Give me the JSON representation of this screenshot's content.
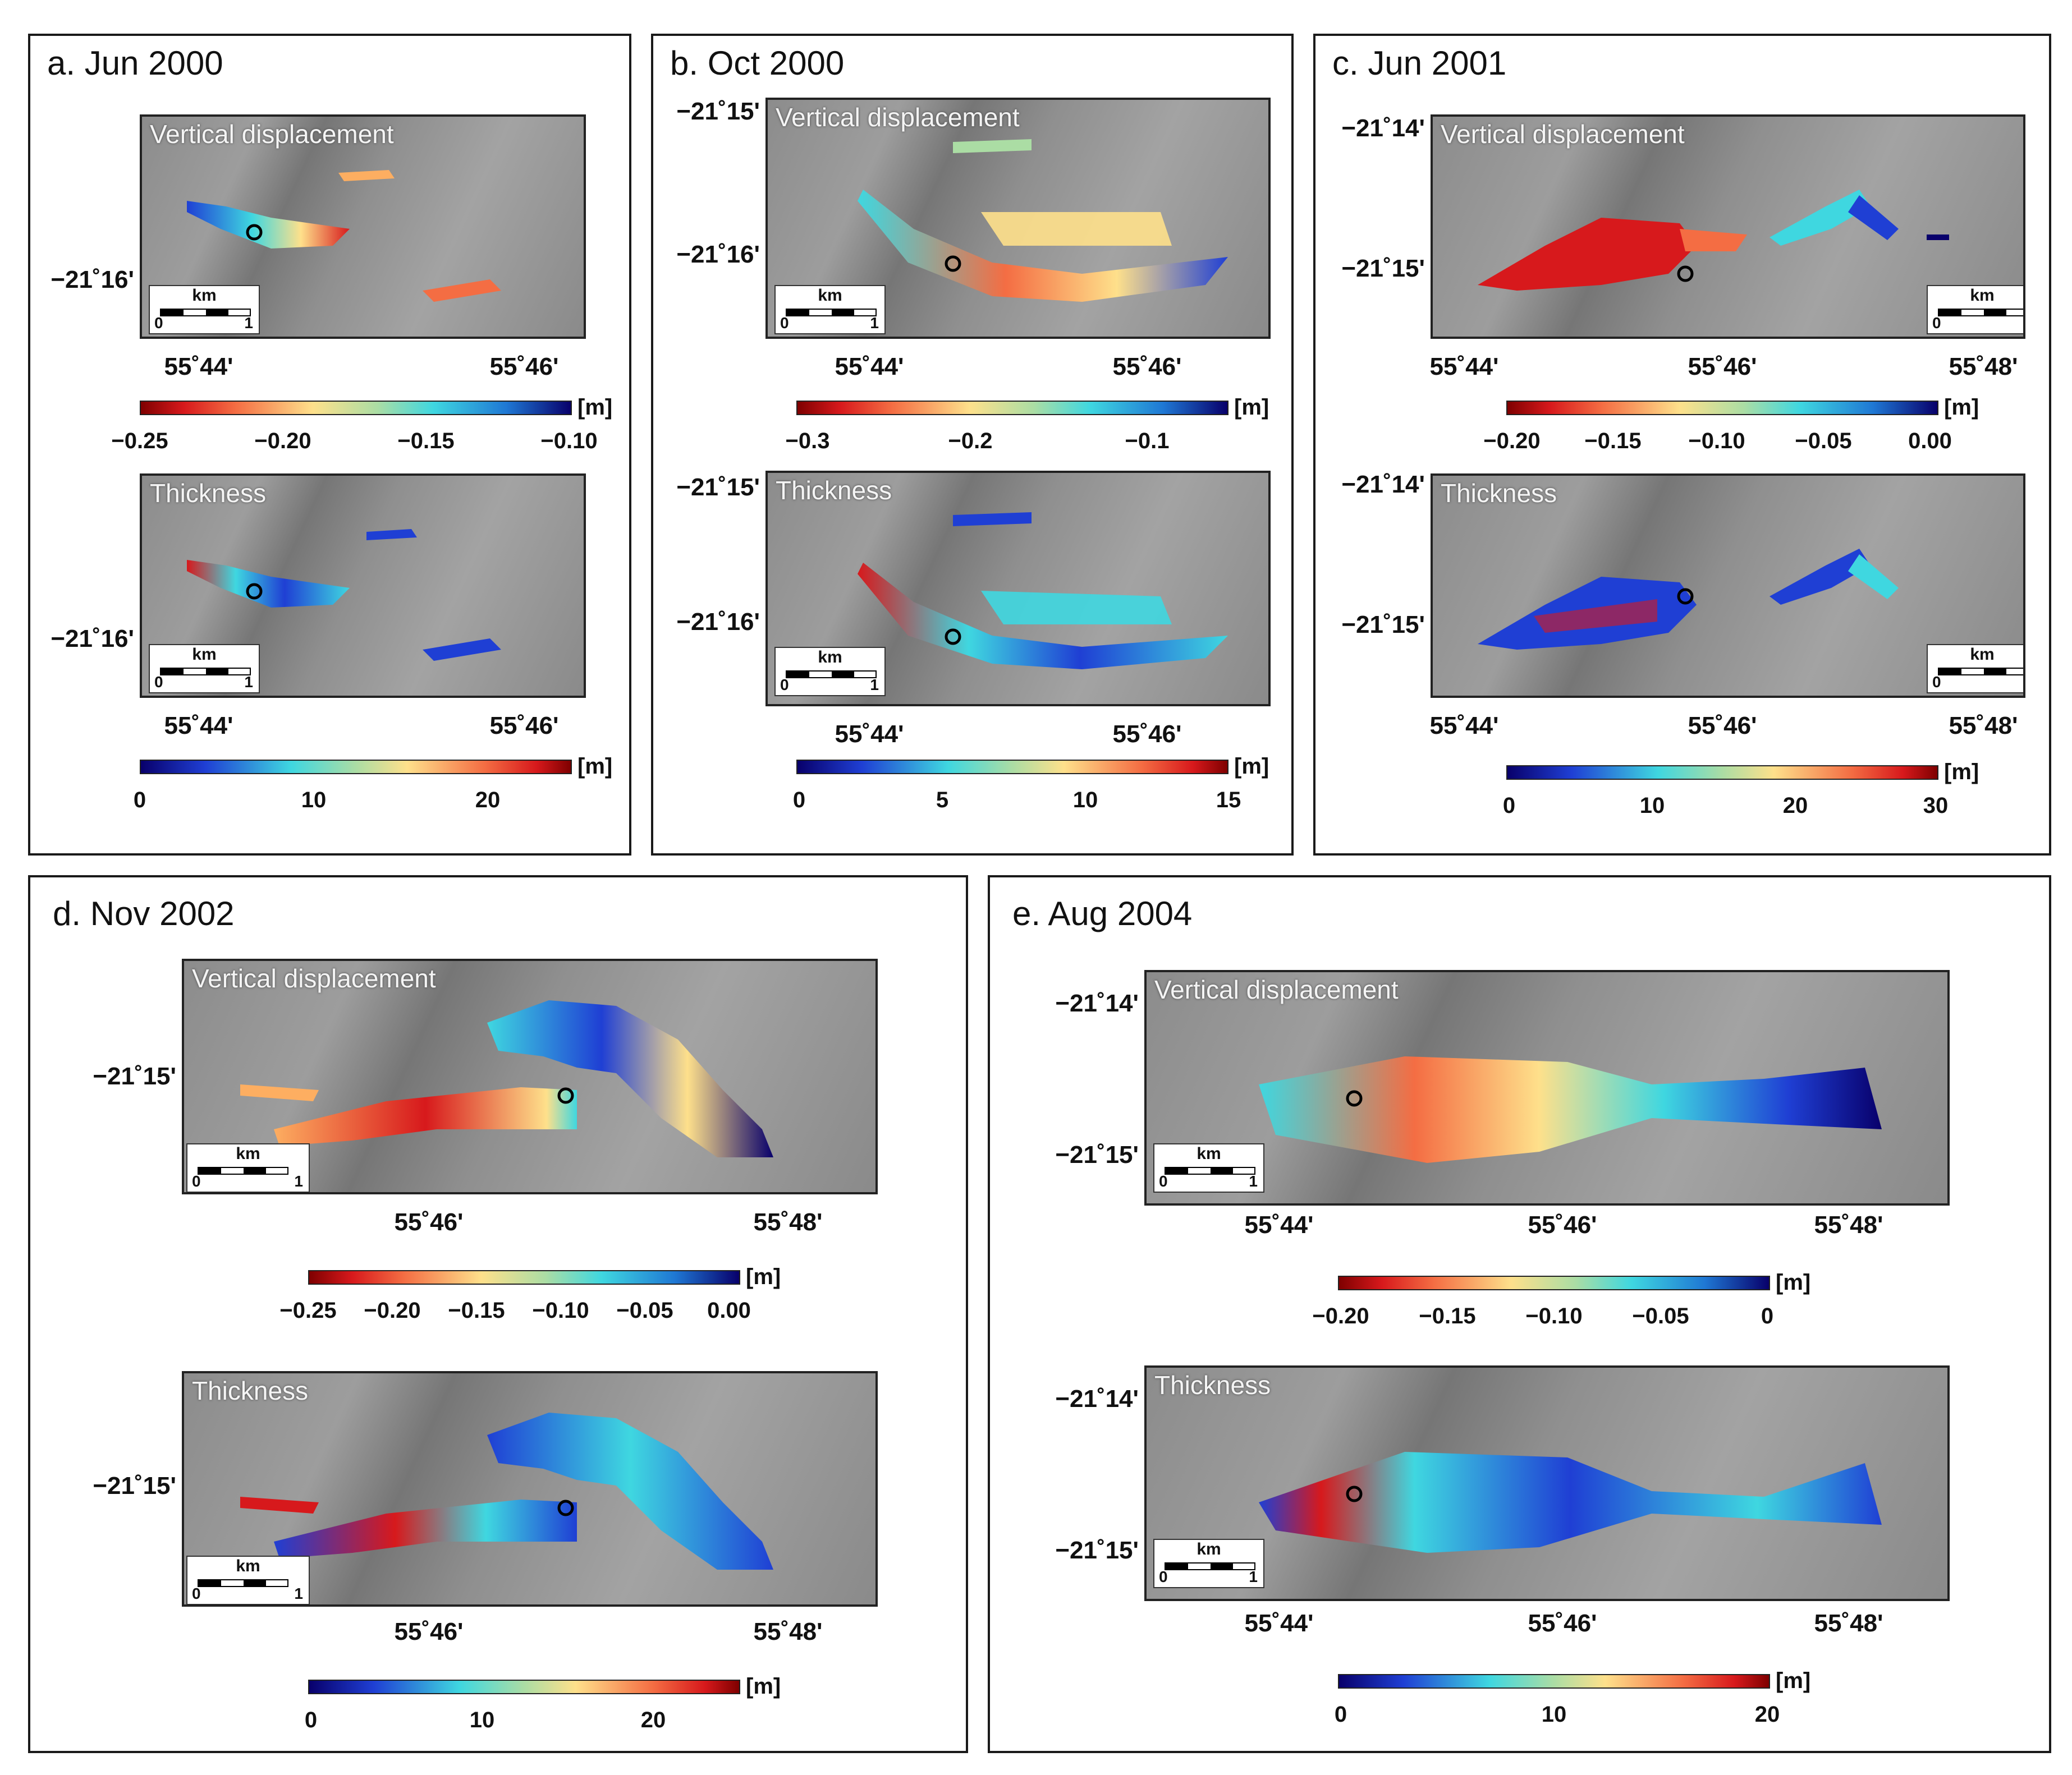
{
  "unit": "[m]",
  "vlabel": "Vertical displacement",
  "tlabel": "Thickness",
  "km": "km",
  "zero": "0",
  "one": "1",
  "colors": {
    "hot": "#d7191c",
    "warm": "#fdae61",
    "mid": "#e6f598",
    "cool": "#3fd7e0",
    "cold": "#1f3fd4",
    "deep": "#08006b"
  },
  "panels": {
    "a": {
      "title": "a. Jun 2000",
      "lat1": "−21˚16'",
      "lat2": "−21˚16'",
      "lonA": "55˚44'",
      "lonB": "55˚46'",
      "vticks": [
        "−0.25",
        "−0.20",
        "−0.15",
        "−0.10"
      ],
      "tticks": [
        "0",
        "10",
        "20"
      ]
    },
    "b": {
      "title": "b. Oct 2000",
      "lat1": "−21˚15'",
      "lat2": "−21˚16'",
      "lat3": "−21˚15'",
      "lat4": "−21˚16'",
      "lonA": "55˚44'",
      "lonB": "55˚46'",
      "vticks": [
        "−0.3",
        "−0.2",
        "−0.1"
      ],
      "tticks": [
        "0",
        "5",
        "10",
        "15"
      ]
    },
    "c": {
      "title": "c. Jun 2001",
      "lat1": "−21˚14'",
      "lat2": "−21˚15'",
      "lat3": "−21˚14'",
      "lat4": "−21˚15'",
      "lonA": "55˚44'",
      "lonB": "55˚46'",
      "lonC": "55˚48'",
      "vticks": [
        "−0.20",
        "−0.15",
        "−0.10",
        "−0.05",
        "0.00"
      ],
      "tticks": [
        "0",
        "10",
        "20",
        "30"
      ]
    },
    "d": {
      "title": "d. Nov 2002",
      "lat1": "−21˚15'",
      "lat2": "−21˚15'",
      "lonA": "55˚46'",
      "lonB": "55˚48'",
      "vticks": [
        "−0.25",
        "−0.20",
        "−0.15",
        "−0.10",
        "−0.05",
        "0.00"
      ],
      "tticks": [
        "0",
        "10",
        "20"
      ]
    },
    "e": {
      "title": "e. Aug 2004",
      "lat1": "−21˚14'",
      "lat2": "−21˚15'",
      "lat3": "−21˚14'",
      "lat4": "−21˚15'",
      "lonA": "55˚44'",
      "lonB": "55˚46'",
      "lonC": "55˚48'",
      "vticks": [
        "−0.20",
        "−0.15",
        "−0.10",
        "−0.05",
        "0"
      ],
      "tticks": [
        "0",
        "10",
        "20"
      ]
    }
  }
}
